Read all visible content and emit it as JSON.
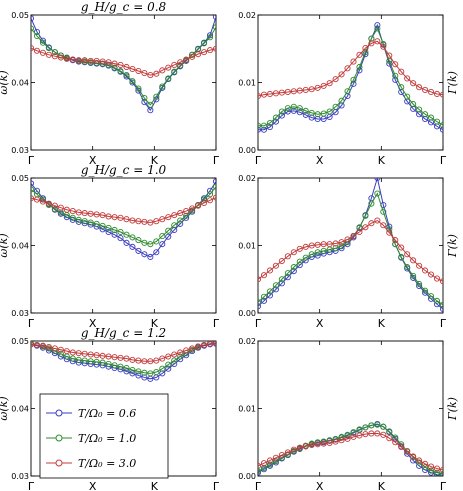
{
  "chart_data": {
    "type": "line",
    "categories": [
      "Γ",
      "X",
      "K",
      "Γ"
    ],
    "legend": {
      "placement": "lower-left",
      "entries": [
        "T/Ω₀ = 0.6",
        "T/Ω₀ = 1.0",
        "T/Ω₀ = 3.0"
      ]
    },
    "colors": {
      "blue": "#3b3bc4",
      "green": "#2e8b2e",
      "red": "#c43b3b"
    },
    "panels": [
      {
        "title": "g_H/g_c = 0.8",
        "ylabel": "ω̄(k)",
        "ylim": [
          0.03,
          0.05
        ],
        "yticks": [
          "0.03",
          "0.04",
          "0.05"
        ],
        "series": [
          {
            "name": "T/Ω₀ = 0.6",
            "color": "#3b3bc4",
            "values": [
              0.0495,
              0.0475,
              0.0462,
              0.0452,
              0.0445,
              0.044,
              0.0436,
              0.0433,
              0.0431,
              0.043,
              0.0429,
              0.0428,
              0.0427,
              0.0425,
              0.0421,
              0.0416,
              0.0409,
              0.04,
              0.0388,
              0.0371,
              0.0359,
              0.0375,
              0.0392,
              0.0405,
              0.0415,
              0.0424,
              0.0432,
              0.0441,
              0.045,
              0.0459,
              0.047,
              0.0497
            ]
          },
          {
            "name": "T/Ω₀ = 1.0",
            "color": "#2e8b2e",
            "values": [
              0.048,
              0.0469,
              0.0459,
              0.0451,
              0.0445,
              0.044,
              0.0437,
              0.0434,
              0.0432,
              0.0431,
              0.043,
              0.0429,
              0.0428,
              0.0426,
              0.0422,
              0.0417,
              0.0411,
              0.0402,
              0.0391,
              0.0377,
              0.0367,
              0.0379,
              0.0394,
              0.0406,
              0.0416,
              0.0425,
              0.0433,
              0.0441,
              0.0449,
              0.0458,
              0.0467,
              0.0482
            ]
          },
          {
            "name": "T/Ω₀ = 3.0",
            "color": "#c43b3b",
            "values": [
              0.0451,
              0.0447,
              0.0444,
              0.0441,
              0.0439,
              0.0437,
              0.0435,
              0.0434,
              0.0433,
              0.0433,
              0.0432,
              0.0432,
              0.0431,
              0.043,
              0.0428,
              0.0426,
              0.0423,
              0.042,
              0.0417,
              0.0414,
              0.0411,
              0.0413,
              0.0418,
              0.0422,
              0.0426,
              0.043,
              0.0434,
              0.0438,
              0.0442,
              0.0445,
              0.0448,
              0.045
            ]
          }
        ]
      },
      {
        "title": "",
        "ylabel": "Γ(k)",
        "ylim": [
          0.0,
          0.02
        ],
        "yticks": [
          "0.00",
          "0.01",
          "0.02"
        ],
        "series": [
          {
            "name": "T/Ω₀ = 0.6",
            "color": "#3b3bc4",
            "values": [
              0.003,
              0.003,
              0.0034,
              0.0042,
              0.0051,
              0.0057,
              0.0058,
              0.0056,
              0.0052,
              0.0048,
              0.0046,
              0.0046,
              0.0049,
              0.0056,
              0.0066,
              0.008,
              0.0098,
              0.0118,
              0.0142,
              0.0165,
              0.0185,
              0.0156,
              0.0128,
              0.0104,
              0.0086,
              0.0072,
              0.0061,
              0.0053,
              0.0046,
              0.0041,
              0.0035,
              0.003
            ]
          },
          {
            "name": "T/Ω₀ = 1.0",
            "color": "#2e8b2e",
            "values": [
              0.0036,
              0.0036,
              0.004,
              0.0048,
              0.0057,
              0.0062,
              0.0064,
              0.0062,
              0.0058,
              0.0055,
              0.0053,
              0.0054,
              0.0057,
              0.0064,
              0.0073,
              0.0087,
              0.0104,
              0.0123,
              0.0145,
              0.0165,
              0.018,
              0.0157,
              0.0132,
              0.011,
              0.0093,
              0.0079,
              0.0068,
              0.006,
              0.0053,
              0.0048,
              0.0042,
              0.0037
            ]
          },
          {
            "name": "T/Ω₀ = 3.0",
            "color": "#c43b3b",
            "values": [
              0.008,
              0.0082,
              0.0083,
              0.0084,
              0.0085,
              0.0086,
              0.0087,
              0.0088,
              0.0089,
              0.009,
              0.0092,
              0.0095,
              0.0099,
              0.0105,
              0.0112,
              0.0121,
              0.0131,
              0.0141,
              0.0151,
              0.0158,
              0.0161,
              0.0153,
              0.014,
              0.0127,
              0.0116,
              0.0106,
              0.0099,
              0.0093,
              0.0089,
              0.0086,
              0.0083,
              0.0082
            ]
          }
        ]
      },
      {
        "title": "g_H/g_c = 1.0",
        "ylabel": "ω̄(k)",
        "ylim": [
          0.03,
          0.05
        ],
        "yticks": [
          "0.03",
          "0.04",
          "0.05"
        ],
        "series": [
          {
            "name": "T/Ω₀ = 0.6",
            "color": "#3b3bc4",
            "values": [
              0.0492,
              0.0481,
              0.047,
              0.0461,
              0.0453,
              0.0447,
              0.0442,
              0.0438,
              0.0435,
              0.0433,
              0.0431,
              0.0428,
              0.0424,
              0.042,
              0.0416,
              0.0411,
              0.0404,
              0.0398,
              0.0392,
              0.0387,
              0.0383,
              0.039,
              0.0402,
              0.0413,
              0.0423,
              0.0432,
              0.0441,
              0.045,
              0.046,
              0.047,
              0.0481,
              0.0495
            ]
          },
          {
            "name": "T/Ω₀ = 1.0",
            "color": "#2e8b2e",
            "values": [
              0.0483,
              0.0476,
              0.0468,
              0.046,
              0.0454,
              0.0449,
              0.0445,
              0.0441,
              0.0438,
              0.0436,
              0.0434,
              0.0432,
              0.0429,
              0.0426,
              0.0423,
              0.042,
              0.0416,
              0.0412,
              0.0408,
              0.0404,
              0.0402,
              0.0406,
              0.0414,
              0.0422,
              0.043,
              0.0437,
              0.0444,
              0.0452,
              0.046,
              0.0468,
              0.0476,
              0.0487
            ]
          },
          {
            "name": "T/Ω₀ = 3.0",
            "color": "#c43b3b",
            "values": [
              0.047,
              0.0468,
              0.0465,
              0.0462,
              0.0459,
              0.0456,
              0.0453,
              0.0451,
              0.0449,
              0.0448,
              0.0447,
              0.0446,
              0.0445,
              0.0443,
              0.0442,
              0.0441,
              0.0439,
              0.0437,
              0.0436,
              0.0435,
              0.0434,
              0.0436,
              0.0439,
              0.0442,
              0.0445,
              0.0448,
              0.0451,
              0.0455,
              0.0459,
              0.0463,
              0.0467,
              0.0471
            ]
          }
        ]
      },
      {
        "title": "",
        "ylabel": "Γ(k)",
        "ylim": [
          0.0,
          0.02
        ],
        "yticks": [
          "0.00",
          "0.01",
          "0.02"
        ],
        "series": [
          {
            "name": "T/Ω₀ = 0.6",
            "color": "#3b3bc4",
            "values": [
              0.001,
              0.0018,
              0.0026,
              0.0035,
              0.0044,
              0.0053,
              0.0062,
              0.0071,
              0.0078,
              0.0083,
              0.0085,
              0.0088,
              0.009,
              0.0092,
              0.0096,
              0.0102,
              0.0112,
              0.0126,
              0.0145,
              0.017,
              0.02,
              0.016,
              0.0128,
              0.0102,
              0.0082,
              0.0066,
              0.0052,
              0.004,
              0.003,
              0.0021,
              0.0013,
              0.0006
            ]
          },
          {
            "name": "T/Ω₀ = 1.0",
            "color": "#2e8b2e",
            "values": [
              0.0016,
              0.0024,
              0.0032,
              0.0041,
              0.005,
              0.0059,
              0.0068,
              0.0076,
              0.0082,
              0.0087,
              0.009,
              0.0092,
              0.0094,
              0.0096,
              0.0099,
              0.0105,
              0.0114,
              0.0127,
              0.0144,
              0.0162,
              0.0177,
              0.015,
              0.0124,
              0.0102,
              0.0083,
              0.0068,
              0.0055,
              0.0043,
              0.0033,
              0.0025,
              0.0018,
              0.0012
            ]
          },
          {
            "name": "T/Ω₀ = 3.0",
            "color": "#c43b3b",
            "values": [
              0.005,
              0.0056,
              0.0063,
              0.007,
              0.0077,
              0.0084,
              0.009,
              0.0095,
              0.0098,
              0.01,
              0.0101,
              0.0102,
              0.0102,
              0.0103,
              0.0105,
              0.0109,
              0.0114,
              0.012,
              0.0127,
              0.0133,
              0.0137,
              0.013,
              0.0119,
              0.0108,
              0.0097,
              0.0087,
              0.0078,
              0.007,
              0.0063,
              0.0057,
              0.0051,
              0.0047
            ]
          }
        ]
      },
      {
        "title": "g_H/g_c = 1.2",
        "ylabel": "ω̄(k)",
        "ylim": [
          0.03,
          0.05
        ],
        "yticks": [
          "0.03",
          "0.04",
          "0.05"
        ],
        "series": [
          {
            "name": "T/Ω₀ = 0.6",
            "color": "#3b3bc4",
            "values": [
              0.0495,
              0.0493,
              0.049,
              0.0486,
              0.0482,
              0.0477,
              0.0473,
              0.047,
              0.0468,
              0.0467,
              0.0466,
              0.0465,
              0.0464,
              0.0462,
              0.046,
              0.0458,
              0.0455,
              0.0452,
              0.0449,
              0.0446,
              0.0444,
              0.0446,
              0.0452,
              0.0459,
              0.0466,
              0.0473,
              0.0479,
              0.0485,
              0.049,
              0.0493,
              0.0495,
              0.0496
            ]
          },
          {
            "name": "T/Ω₀ = 1.0",
            "color": "#2e8b2e",
            "values": [
              0.0496,
              0.0494,
              0.0492,
              0.0489,
              0.0485,
              0.0481,
              0.0477,
              0.0474,
              0.0472,
              0.0471,
              0.047,
              0.0469,
              0.0468,
              0.0466,
              0.0464,
              0.0462,
              0.046,
              0.0457,
              0.0455,
              0.0453,
              0.0452,
              0.0454,
              0.0459,
              0.0465,
              0.0471,
              0.0477,
              0.0482,
              0.0487,
              0.0491,
              0.0494,
              0.0496,
              0.0497
            ]
          },
          {
            "name": "T/Ω₀ = 3.0",
            "color": "#c43b3b",
            "values": [
              0.0495,
              0.0494,
              0.0493,
              0.0491,
              0.0489,
              0.0487,
              0.0485,
              0.0483,
              0.0482,
              0.0481,
              0.048,
              0.0479,
              0.0478,
              0.0477,
              0.0476,
              0.0475,
              0.0474,
              0.0472,
              0.0471,
              0.047,
              0.047,
              0.0471,
              0.0474,
              0.0477,
              0.048,
              0.0483,
              0.0486,
              0.0489,
              0.0492,
              0.0494,
              0.0496,
              0.0497
            ]
          }
        ]
      },
      {
        "title": "",
        "ylabel": "Γ(k)",
        "ylim": [
          0.0,
          0.02
        ],
        "yticks": [
          "0.00",
          "0.01",
          "0.02"
        ],
        "series": [
          {
            "name": "T/Ω₀ = 0.6",
            "color": "#3b3bc4",
            "values": [
              0.0005,
              0.001,
              0.0015,
              0.002,
              0.0026,
              0.0031,
              0.0036,
              0.004,
              0.0044,
              0.0047,
              0.0049,
              0.005,
              0.0052,
              0.0054,
              0.0057,
              0.006,
              0.0064,
              0.0068,
              0.0072,
              0.0075,
              0.0077,
              0.0073,
              0.0065,
              0.0055,
              0.0044,
              0.0033,
              0.0023,
              0.0015,
              0.0009,
              0.0005,
              0.0002,
              0.0001
            ]
          },
          {
            "name": "T/Ω₀ = 1.0",
            "color": "#2e8b2e",
            "values": [
              0.0007,
              0.0012,
              0.0017,
              0.0022,
              0.0027,
              0.0032,
              0.0037,
              0.0041,
              0.0045,
              0.0048,
              0.005,
              0.0051,
              0.0053,
              0.0055,
              0.0058,
              0.0061,
              0.0065,
              0.0069,
              0.0072,
              0.0075,
              0.0076,
              0.0073,
              0.0066,
              0.0057,
              0.0047,
              0.0037,
              0.0028,
              0.002,
              0.0013,
              0.0008,
              0.0005,
              0.0003
            ]
          },
          {
            "name": "T/Ω₀ = 3.0",
            "color": "#c43b3b",
            "values": [
              0.0015,
              0.0019,
              0.0023,
              0.0027,
              0.0031,
              0.0035,
              0.0039,
              0.0042,
              0.0044,
              0.0046,
              0.0047,
              0.0048,
              0.0049,
              0.0051,
              0.0053,
              0.0055,
              0.0058,
              0.006,
              0.0062,
              0.0063,
              0.0063,
              0.0061,
              0.0056,
              0.005,
              0.0043,
              0.0036,
              0.0029,
              0.0023,
              0.0018,
              0.0014,
              0.0011,
              0.0009
            ]
          }
        ]
      }
    ]
  }
}
